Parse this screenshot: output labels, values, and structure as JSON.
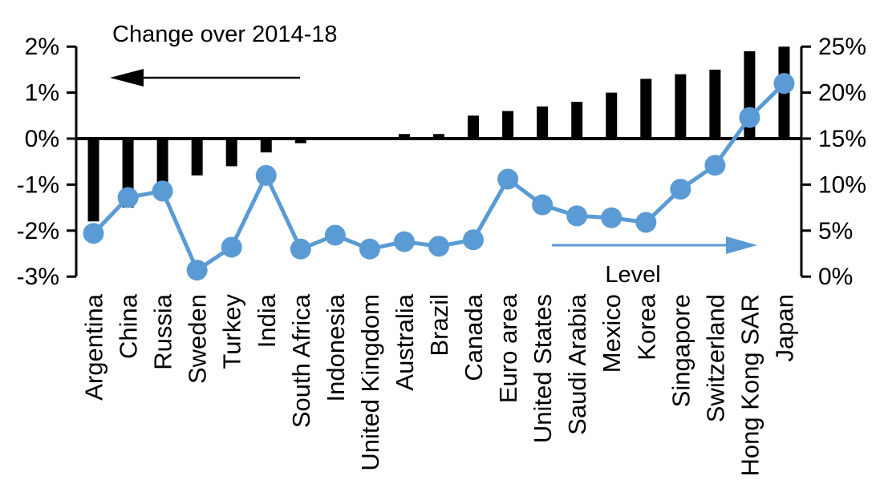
{
  "chart_data": {
    "type": "bar",
    "title": "",
    "categories": [
      "Argentina",
      "China",
      "Russia",
      "Sweden",
      "Turkey",
      "India",
      "South Africa",
      "Indonesia",
      "United Kingdom",
      "Australia",
      "Brazil",
      "Canada",
      "Euro area",
      "United States",
      "Saudi Arabia",
      "Mexico",
      "Korea",
      "Singapore",
      "Switzerland",
      "Hong Kong SAR",
      "Japan"
    ],
    "series": [
      {
        "name": "Change over 2014-18",
        "type": "bar",
        "axis": "left",
        "color": "#000000",
        "values": [
          -1.8,
          -1.5,
          -1.3,
          -0.8,
          -0.6,
          -0.3,
          -0.1,
          0,
          0,
          0.1,
          0.1,
          0.5,
          0.6,
          0.7,
          0.8,
          1.0,
          1.3,
          1.4,
          1.5,
          1.9,
          2.0
        ]
      },
      {
        "name": "Level",
        "type": "line",
        "axis": "right",
        "color": "#5B9BD5",
        "values": [
          4.7,
          8.6,
          9.3,
          0.7,
          3.2,
          11.0,
          3.0,
          4.5,
          3.0,
          3.8,
          3.3,
          4.0,
          10.6,
          7.8,
          6.6,
          6.4,
          5.9,
          9.5,
          12.1,
          17.3,
          21.0
        ]
      }
    ],
    "left_axis": {
      "range": [
        -3,
        2
      ],
      "tick_values": [
        2,
        1,
        0,
        -1,
        -2,
        -3
      ],
      "tick_labels": [
        "2%",
        "1%",
        "0%",
        "-1%",
        "-2%",
        "-3%"
      ]
    },
    "right_axis": {
      "range": [
        0,
        25
      ],
      "tick_values": [
        25,
        20,
        15,
        10,
        5,
        0
      ],
      "tick_labels": [
        "25%",
        "20%",
        "15%",
        "10%",
        "5%",
        "0%"
      ]
    },
    "annotations": {
      "change_label": "Change over 2014-18",
      "level_label": "Level"
    },
    "grid": false,
    "legend_position": "in-plot annotations with directional arrows"
  }
}
